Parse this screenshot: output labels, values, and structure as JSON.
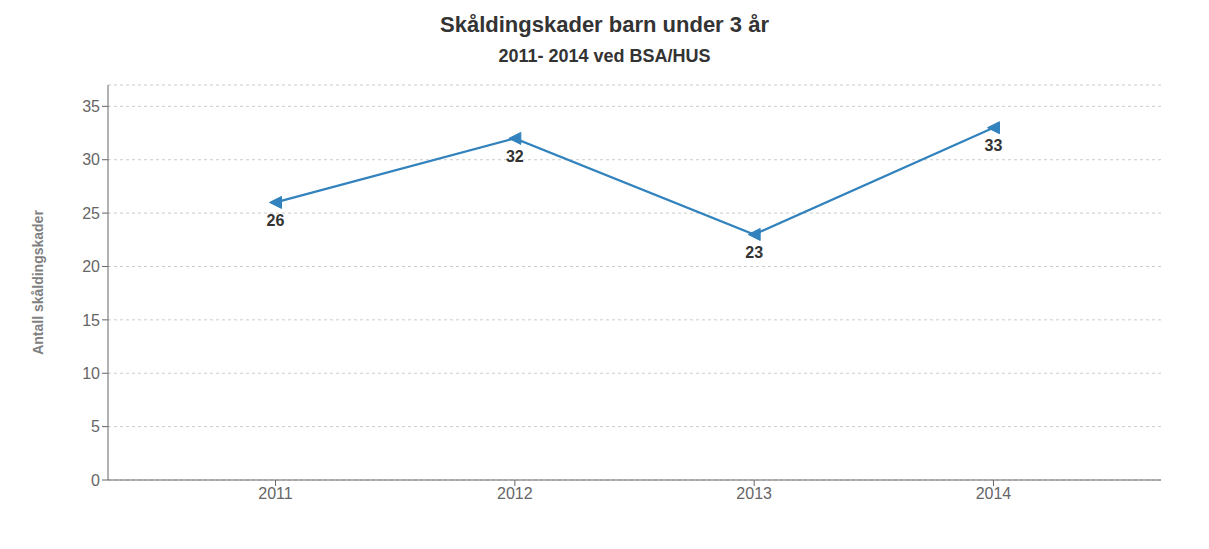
{
  "chart_data": {
    "type": "line",
    "title": "Skåldingskader barn under 3 år",
    "subtitle": "2011- 2014 ved BSA/HUS",
    "ylabel": "Antall skåldingskader",
    "x": [
      2011,
      2012,
      2013,
      2014
    ],
    "values": [
      26,
      32,
      23,
      33
    ],
    "xlim": [
      2010.3,
      2014.7
    ],
    "xticks": [
      2011,
      2012,
      2013,
      2014
    ],
    "ylim": [
      0,
      37
    ],
    "yticks": [
      0,
      5,
      10,
      15,
      20,
      25,
      30,
      35
    ],
    "grid": true,
    "marker": "triangle-left",
    "data_labels": true
  }
}
